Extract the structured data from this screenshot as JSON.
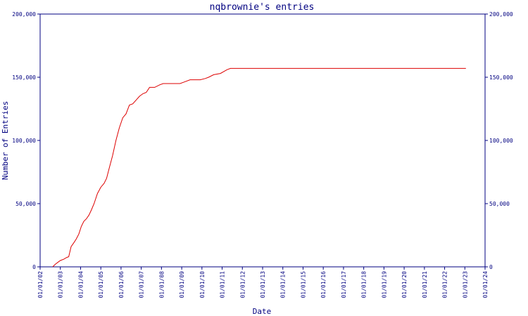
{
  "chart_data": {
    "type": "line",
    "title": "nqbrownie's entries",
    "xlabel": "Date",
    "ylabel": "Number of Entries",
    "x_ticks": [
      "01/01/02",
      "01/01/03",
      "01/01/04",
      "01/01/05",
      "01/01/06",
      "01/01/07",
      "01/01/08",
      "01/01/09",
      "01/01/10",
      "01/01/11",
      "01/01/12",
      "01/01/13",
      "01/01/14",
      "01/01/15",
      "01/01/16",
      "01/01/17",
      "01/01/18",
      "01/01/19",
      "01/01/20",
      "01/01/21",
      "01/01/22",
      "01/01/23",
      "01/01/24"
    ],
    "y_ticks": [
      0,
      50000,
      100000,
      150000,
      200000
    ],
    "y_tick_labels": [
      "0",
      "50,000",
      "100,000",
      "150,000",
      "200,000"
    ],
    "xlim": [
      "2002-01-01",
      "2024-01-01"
    ],
    "ylim": [
      0,
      200000
    ],
    "line_color": "#dd0000",
    "axis_color": "#000080",
    "grid": false,
    "legend": "none",
    "series": [
      {
        "x": [
          "2002-08-15",
          "2002-10-01",
          "2002-11-15",
          "2003-01-01",
          "2003-03-01",
          "2003-05-01",
          "2003-06-01",
          "2003-07-15",
          "2003-09-01",
          "2003-10-15",
          "2003-12-01",
          "2004-01-15",
          "2004-03-01",
          "2004-04-15",
          "2004-06-01",
          "2004-07-15",
          "2004-09-01",
          "2004-11-01",
          "2005-01-01",
          "2005-03-01",
          "2005-04-15",
          "2005-06-01",
          "2005-08-01",
          "2005-10-01",
          "2005-12-01",
          "2006-02-01",
          "2006-04-01",
          "2006-06-01",
          "2006-08-01",
          "2006-10-01",
          "2006-12-01",
          "2007-02-01",
          "2007-04-01",
          "2007-06-01",
          "2007-09-01",
          "2007-12-01",
          "2008-02-01",
          "2008-03-15",
          "2008-06-01",
          "2008-09-01",
          "2008-12-01",
          "2009-02-01",
          "2009-06-01",
          "2009-12-01",
          "2010-03-01",
          "2010-05-01",
          "2010-08-01",
          "2010-12-01",
          "2011-04-01",
          "2011-06-01",
          "2011-10-01",
          "2011-12-01",
          "2012-02-01",
          "2012-06-01",
          "2013-01-01",
          "2018-01-01",
          "2023-01-20"
        ],
        "values": [
          0,
          2000,
          3500,
          5000,
          6000,
          7500,
          8000,
          16000,
          19000,
          22000,
          26000,
          32000,
          36000,
          38000,
          41000,
          45000,
          50000,
          58000,
          63000,
          66000,
          70000,
          78000,
          88000,
          100000,
          110000,
          118000,
          121000,
          128000,
          129000,
          132000,
          135000,
          137000,
          138000,
          142000,
          142000,
          144000,
          145000,
          145000,
          145000,
          145000,
          145000,
          146000,
          148000,
          148000,
          149000,
          150000,
          152000,
          153000,
          156000,
          157000,
          157000,
          157000,
          157000,
          157000,
          157000,
          157000,
          157000
        ]
      }
    ]
  }
}
